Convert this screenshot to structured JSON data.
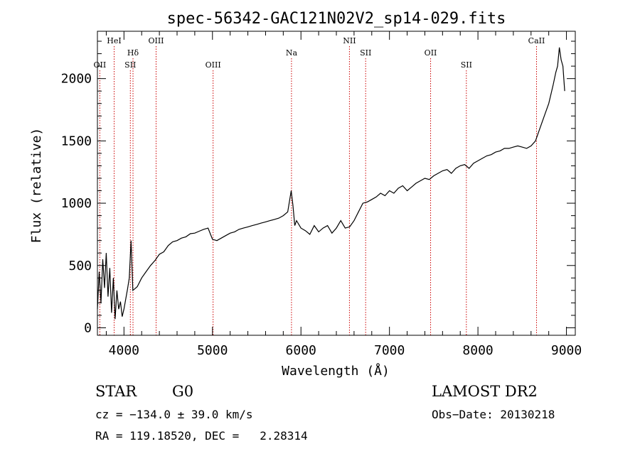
{
  "chart_data": {
    "type": "line",
    "title": "spec-56342-GAC121N02V2_sp14-029.fits",
    "xlabel": "Wavelength (Å)",
    "ylabel": "Flux (relative)",
    "xlim": [
      3700,
      9100
    ],
    "ylim": [
      -60,
      2380
    ],
    "x_ticks": [
      4000,
      5000,
      6000,
      7000,
      8000,
      9000
    ],
    "y_ticks": [
      0,
      500,
      1000,
      1500,
      2000
    ],
    "grid": false,
    "line_color": "#000000",
    "marker_color": "#cc0000",
    "series": [
      {
        "x": [
          3700,
          3720,
          3740,
          3760,
          3780,
          3800,
          3820,
          3840,
          3860,
          3880,
          3900,
          3920,
          3940,
          3960,
          3980,
          4000,
          4020,
          4040,
          4060,
          4080,
          4100,
          4150,
          4200,
          4250,
          4300,
          4350,
          4400,
          4450,
          4500,
          4550,
          4600,
          4650,
          4700,
          4750,
          4800,
          4850,
          4900,
          4950,
          5000,
          5050,
          5100,
          5150,
          5200,
          5250,
          5300,
          5350,
          5400,
          5450,
          5500,
          5550,
          5600,
          5650,
          5700,
          5750,
          5800,
          5850,
          5890,
          5910,
          5930,
          5950,
          6000,
          6050,
          6100,
          6150,
          6200,
          6250,
          6300,
          6350,
          6400,
          6450,
          6500,
          6550,
          6600,
          6650,
          6700,
          6750,
          6800,
          6850,
          6900,
          6950,
          7000,
          7050,
          7100,
          7150,
          7200,
          7250,
          7300,
          7350,
          7400,
          7450,
          7500,
          7550,
          7600,
          7650,
          7700,
          7750,
          7800,
          7850,
          7900,
          7950,
          8000,
          8050,
          8100,
          8150,
          8200,
          8250,
          8300,
          8350,
          8400,
          8450,
          8500,
          8550,
          8600,
          8650,
          8700,
          8750,
          8800,
          8850,
          8880,
          8900,
          8920,
          8940,
          8960,
          8980
        ],
        "y": [
          150,
          450,
          200,
          550,
          320,
          600,
          250,
          480,
          120,
          400,
          70,
          300,
          150,
          210,
          90,
          150,
          230,
          310,
          400,
          700,
          300,
          330,
          400,
          450,
          500,
          540,
          590,
          610,
          660,
          690,
          700,
          720,
          730,
          755,
          760,
          775,
          790,
          800,
          710,
          700,
          720,
          740,
          760,
          770,
          790,
          800,
          810,
          820,
          830,
          840,
          850,
          860,
          870,
          880,
          900,
          930,
          1100,
          980,
          820,
          860,
          800,
          780,
          750,
          820,
          770,
          800,
          820,
          760,
          800,
          860,
          800,
          810,
          860,
          930,
          1000,
          1010,
          1030,
          1050,
          1080,
          1060,
          1100,
          1080,
          1120,
          1140,
          1100,
          1130,
          1160,
          1180,
          1200,
          1190,
          1220,
          1240,
          1260,
          1270,
          1240,
          1280,
          1300,
          1310,
          1280,
          1320,
          1340,
          1360,
          1380,
          1390,
          1410,
          1420,
          1440,
          1440,
          1450,
          1460,
          1450,
          1440,
          1460,
          1500,
          1600,
          1700,
          1800,
          1950,
          2050,
          2100,
          2250,
          2150,
          2100,
          1900
        ]
      }
    ],
    "lines": [
      {
        "label": "OII",
        "x": 3727,
        "row": 3
      },
      {
        "label": "HeI",
        "x": 3889,
        "row": 1
      },
      {
        "label": "SII",
        "x": 4072,
        "row": 3
      },
      {
        "label": "Hδ",
        "x": 4102,
        "row": 2
      },
      {
        "label": "OIII",
        "x": 4363,
        "row": 1
      },
      {
        "label": "OIII",
        "x": 5007,
        "row": 3
      },
      {
        "label": "Na",
        "x": 5893,
        "row": 2
      },
      {
        "label": "NII",
        "x": 6548,
        "row": 1
      },
      {
        "label": "SII",
        "x": 6731,
        "row": 2
      },
      {
        "label": "OII",
        "x": 7465,
        "row": 2
      },
      {
        "label": "SII",
        "x": 7869,
        "row": 3
      },
      {
        "label": "CaII",
        "x": 8662,
        "row": 1
      }
    ]
  },
  "info": {
    "object_class": "STAR",
    "subclass": "G0",
    "survey": "LAMOST DR2",
    "cz": "cz = −134.0 ± 39.0 km/s",
    "obs_date": "Obs−Date: 20130218",
    "coords": "RA = 119.18520, DEC =   2.28314"
  }
}
